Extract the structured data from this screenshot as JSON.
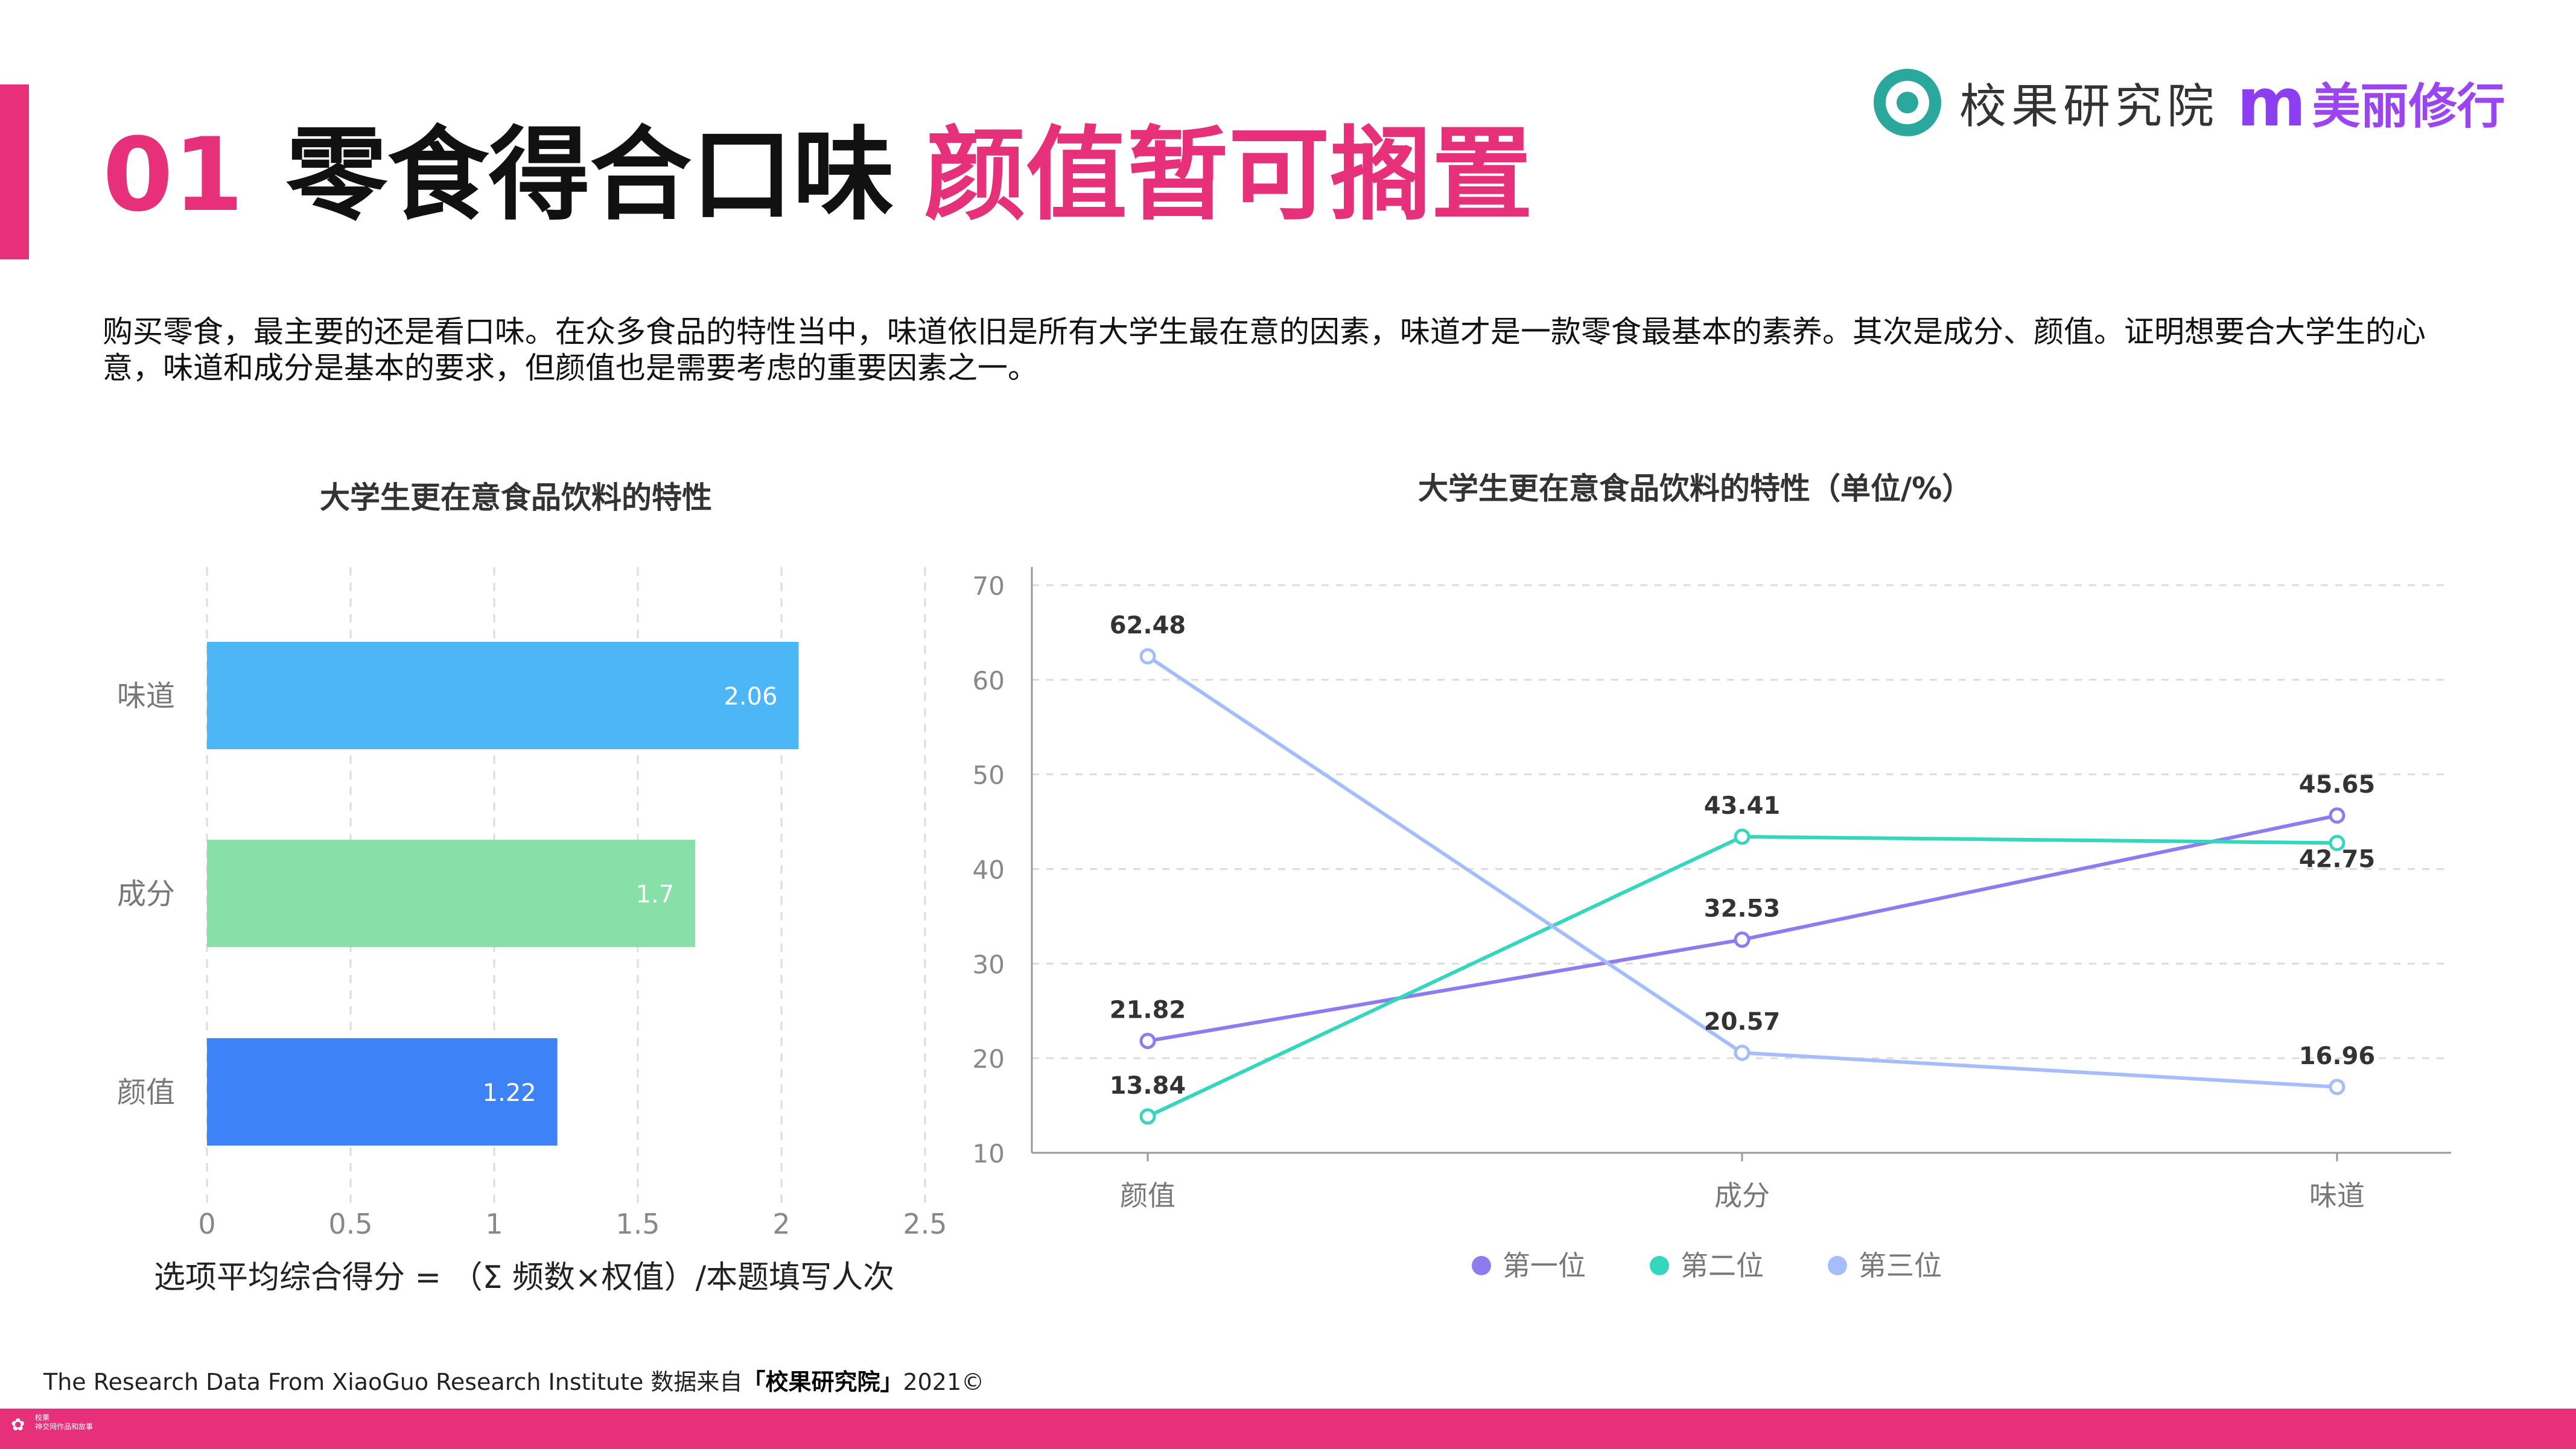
{
  "header": {
    "number": "01",
    "title_black": "零食得合口味",
    "title_pink": "颜值暂可搁置"
  },
  "brand": {
    "name": "校果研究院",
    "partner_mark": "m",
    "partner_name": "美丽修行"
  },
  "intro_text": "购买零食，最主要的还是看口味。在众多食品的特性当中，味道依旧是所有大学生最在意的因素，味道才是一款零食最基本的素养。其次是成分、颜值。证明想要合大学生的心意，味道和成分是基本的要求，但颜值也是需要考虑的重要因素之一。",
  "formula": "选项平均综合得分 = （Σ 频数×权值）/本题填写人次",
  "source": {
    "prefix": "The Research Data From XiaoGuo Research Institute 数据来自",
    "bold": "「校果研究院」",
    "suffix": "2021©"
  },
  "footer": {
    "line1": "校果",
    "line2": "神交网作品和故事"
  },
  "colors": {
    "accent": "#e6317a",
    "bar_taste": "#4db6f5",
    "bar_ingredient": "#88dfa7",
    "bar_looks": "#3e82f7",
    "series_first": "#8c7cf0",
    "series_second": "#34d6bd",
    "series_third": "#a6bdfb"
  },
  "chart_data": [
    {
      "type": "bar",
      "orientation": "horizontal",
      "title": "大学生更在意食品饮料的特性",
      "categories": [
        "味道",
        "成分",
        "颜值"
      ],
      "values": [
        2.06,
        1.7,
        1.22
      ],
      "value_labels": [
        "2.06",
        "1.7",
        "1.22"
      ],
      "xlim": [
        0,
        2.5
      ],
      "xticks": [
        "0",
        "0.5",
        "1",
        "1.5",
        "2",
        "2.5"
      ],
      "grid": "vertical dashed"
    },
    {
      "type": "line",
      "title": "大学生更在意食品饮料的特性（单位/%）",
      "categories": [
        "颜值",
        "成分",
        "味道"
      ],
      "ylim": [
        10,
        70
      ],
      "yticks": [
        "10",
        "20",
        "30",
        "40",
        "50",
        "60",
        "70"
      ],
      "grid": "horizontal dashed",
      "legend_position": "bottom",
      "series": [
        {
          "name": "第一位",
          "values": [
            21.82,
            32.53,
            45.65
          ],
          "labels": [
            "21.82",
            "32.53",
            "45.65"
          ]
        },
        {
          "name": "第二位",
          "values": [
            13.84,
            43.41,
            42.75
          ],
          "labels": [
            "13.84",
            "43.41",
            "42.75"
          ]
        },
        {
          "name": "第三位",
          "values": [
            62.48,
            20.57,
            16.96
          ],
          "labels": [
            "62.48",
            "20.57",
            "16.96"
          ]
        }
      ]
    }
  ]
}
